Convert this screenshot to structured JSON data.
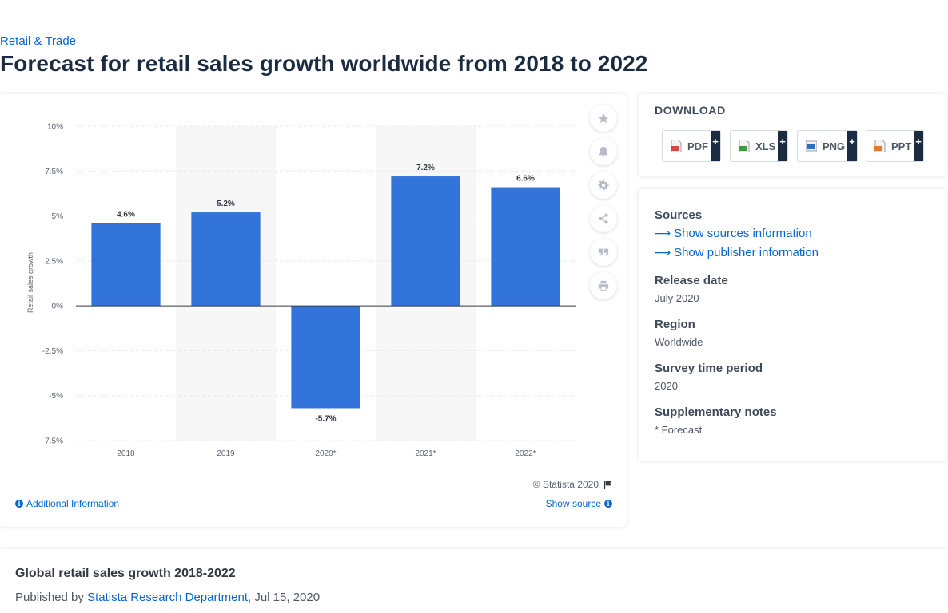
{
  "breadcrumb": "Retail & Trade",
  "page_title": "Forecast for retail sales growth worldwide from 2018 to 2022",
  "chart": {
    "copyright": "© Statista 2020",
    "additional_info": "Additional Information",
    "show_source": "Show source"
  },
  "chart_data": {
    "type": "bar",
    "categories": [
      "2018",
      "2019",
      "2020*",
      "2021*",
      "2022*"
    ],
    "values": [
      4.6,
      5.2,
      -5.7,
      7.2,
      6.6
    ],
    "value_labels": [
      "4.6%",
      "5.2%",
      "-5.7%",
      "7.2%",
      "6.6%"
    ],
    "ylabel": "Retail sales growth",
    "xlabel": "",
    "ylim": [
      -7.5,
      10
    ],
    "yticks": [
      10,
      7.5,
      5,
      2.5,
      0,
      -2.5,
      -5,
      -7.5
    ],
    "ytick_labels": [
      "10%",
      "7.5%",
      "5%",
      "2.5%",
      "0%",
      "-2.5%",
      "-5%",
      "-7.5%"
    ],
    "bar_color": "#3274d9",
    "grid": true,
    "legend": "none"
  },
  "toolbar": {
    "icons": [
      "star-icon",
      "bell-icon",
      "gear-icon",
      "share-icon",
      "quote-icon",
      "print-icon"
    ]
  },
  "download": {
    "title": "DOWNLOAD",
    "buttons": [
      {
        "label": "PDF",
        "icon": "pdf-file-icon",
        "color": "#d64545"
      },
      {
        "label": "XLS",
        "icon": "xls-file-icon",
        "color": "#3c9a3c"
      },
      {
        "label": "PNG",
        "icon": "png-file-icon",
        "color": "#2f6fc4"
      },
      {
        "label": "PPT",
        "icon": "ppt-file-icon",
        "color": "#e8782a"
      }
    ],
    "plus": "+"
  },
  "info": {
    "sources_heading": "Sources",
    "show_sources": "Show sources information",
    "show_publisher": "Show publisher information",
    "release_heading": "Release date",
    "release_value": "July 2020",
    "region_heading": "Region",
    "region_value": "Worldwide",
    "survey_heading": "Survey time period",
    "survey_value": "2020",
    "notes_heading": "Supplementary notes",
    "notes_value": "* Forecast"
  },
  "bottom": {
    "title": "Global retail sales growth 2018-2022",
    "published_prefix": "Published by",
    "publisher": "Statista Research Department",
    "date": ", Jul 15, 2020"
  }
}
